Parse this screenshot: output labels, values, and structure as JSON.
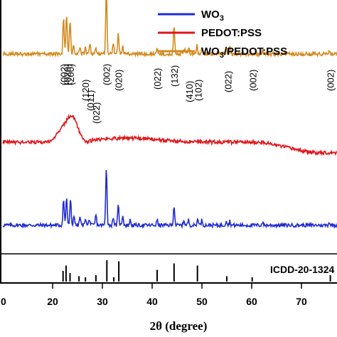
{
  "chart_data": {
    "type": "line",
    "xlabel": "2θ (degree)",
    "xlim": [
      10,
      80
    ],
    "xticks": [
      "20",
      "30",
      "40",
      "50",
      "60",
      "70"
    ],
    "xtick_values": [
      20,
      30,
      40,
      50,
      60,
      70
    ],
    "axis_edge_label": "0",
    "grid": false,
    "legend_position": "top-right",
    "series": [
      {
        "name": "WO3",
        "legend_text": "WO",
        "legend_sub": "3",
        "color": "#1f2bd6",
        "baseline": 0.2,
        "peaks": [
          [
            22.2,
            0.25
          ],
          [
            22.8,
            0.27
          ],
          [
            23.6,
            0.24
          ],
          [
            24.3,
            0.1
          ],
          [
            25.5,
            0.08
          ],
          [
            26.6,
            0.07
          ],
          [
            27.4,
            0.06
          ],
          [
            28.7,
            0.1
          ],
          [
            30.8,
            0.56
          ],
          [
            32.2,
            0.08
          ],
          [
            33.2,
            0.19
          ],
          [
            34.1,
            0.1
          ],
          [
            35.6,
            0.05
          ],
          [
            41.0,
            0.05
          ],
          [
            44.4,
            0.19
          ],
          [
            46.4,
            0.05
          ],
          [
            47.3,
            0.05
          ],
          [
            49.2,
            0.07
          ],
          [
            50.0,
            0.05
          ],
          [
            54.9,
            0.05
          ],
          [
            55.6,
            0.04
          ],
          [
            62.2,
            0.03
          ],
          [
            75.6,
            0.03
          ]
        ]
      },
      {
        "name": "PEDOT:PSS",
        "legend_text": "PEDOT:PSS",
        "color": "#e0161b",
        "baseline": 1.0,
        "humps": [
          [
            23.8,
            0.24,
            1.2
          ],
          [
            21.5,
            0.08,
            1.0
          ],
          [
            35.0,
            0.04,
            6.0
          ],
          [
            26.6,
            -0.02,
            0.8
          ]
        ],
        "tail_drop": 0.1
      },
      {
        "name": "WO3/PEDOT:PSS",
        "legend_text": "WO",
        "legend_sub": "3",
        "legend_suffix": "/PEDOT:PSS",
        "color": "#d48a1d",
        "baseline": 1.85,
        "peaks": [
          [
            22.2,
            0.36
          ],
          [
            22.8,
            0.38
          ],
          [
            23.5,
            0.33
          ],
          [
            24.2,
            0.1
          ],
          [
            25.5,
            0.07
          ],
          [
            26.6,
            0.06
          ],
          [
            27.5,
            0.09
          ],
          [
            28.7,
            0.06
          ],
          [
            30.8,
            0.62
          ],
          [
            32.2,
            0.1
          ],
          [
            33.2,
            0.2
          ],
          [
            34.1,
            0.08
          ],
          [
            41.0,
            0.06
          ],
          [
            44.4,
            0.28
          ],
          [
            46.5,
            0.05
          ],
          [
            47.4,
            0.05
          ],
          [
            49.0,
            0.09
          ],
          [
            50.0,
            0.05
          ],
          [
            54.9,
            0.07
          ],
          [
            55.6,
            0.06
          ],
          [
            62.2,
            0.03
          ],
          [
            75.6,
            0.04
          ]
        ]
      }
    ],
    "annotations": [
      {
        "label": "(002)",
        "x": 22.2
      },
      {
        "label": "(020)",
        "x": 22.9
      },
      {
        "label": "(200)",
        "x": 23.6
      },
      {
        "label": "(120)",
        "x": 26.6
      },
      {
        "label": "(011)",
        "x": 27.6
      },
      {
        "label": "(022)",
        "x": 28.7
      },
      {
        "label": "(002)",
        "x": 30.8
      },
      {
        "label": "(020)",
        "x": 33.2
      },
      {
        "label": "(022)",
        "x": 41.0
      },
      {
        "label": "(132)",
        "x": 44.4
      },
      {
        "label": "(410)",
        "x": 47.4
      },
      {
        "label": "(102)",
        "x": 49.2
      },
      {
        "label": "(022)",
        "x": 55.2
      },
      {
        "label": "(002)",
        "x": 60.2
      },
      {
        "label": "(002)",
        "x": 75.8
      }
    ],
    "reference": {
      "label": "ICDD-20-1324",
      "lines": [
        [
          22.1,
          0.5
        ],
        [
          22.7,
          0.75
        ],
        [
          23.5,
          0.4
        ],
        [
          25.3,
          0.25
        ],
        [
          26.6,
          0.2
        ],
        [
          28.7,
          0.3
        ],
        [
          30.9,
          1.0
        ],
        [
          32.3,
          0.2
        ],
        [
          33.3,
          0.95
        ],
        [
          41.0,
          0.55
        ],
        [
          44.4,
          0.85
        ],
        [
          49.1,
          0.75
        ],
        [
          55.0,
          0.25
        ],
        [
          60.1,
          0.2
        ],
        [
          75.8,
          0.3
        ]
      ]
    }
  }
}
